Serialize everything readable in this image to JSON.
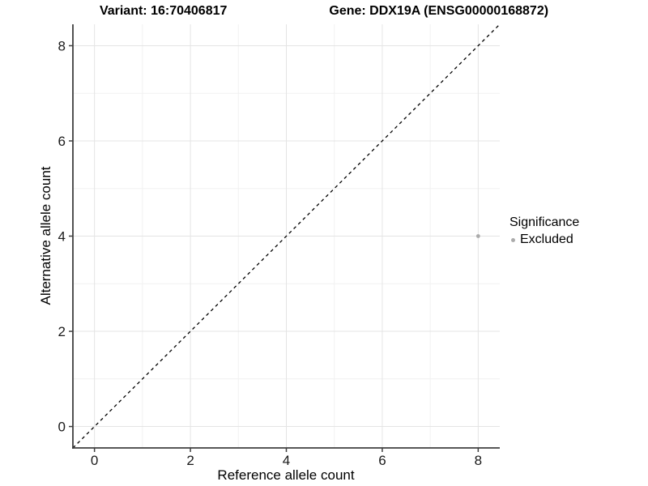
{
  "title": {
    "variant": "Variant: 16:70406817",
    "gene": "Gene: DDX19A (ENSG00000168872)"
  },
  "axes": {
    "x": {
      "label": "Reference allele count",
      "major_ticks": [
        0,
        2,
        4,
        6,
        8
      ],
      "minor_ticks": [
        1,
        3,
        5,
        7
      ],
      "range": [
        -0.45,
        8.45
      ]
    },
    "y": {
      "label": "Alternative allele count",
      "major_ticks": [
        0,
        2,
        4,
        6,
        8
      ],
      "minor_ticks": [
        1,
        3,
        5,
        7
      ],
      "range": [
        -0.45,
        8.45
      ]
    }
  },
  "legend": {
    "title": "Significance",
    "items": [
      {
        "label": "Excluded",
        "color": "#ababab"
      }
    ]
  },
  "chart_data": {
    "type": "scatter",
    "title": "Variant: 16:70406817   Gene: DDX19A (ENSG00000168872)",
    "xlabel": "Reference allele count",
    "ylabel": "Alternative allele count",
    "xlim": [
      -0.45,
      8.45
    ],
    "ylim": [
      -0.45,
      8.45
    ],
    "x_ticks": [
      0,
      2,
      4,
      6,
      8
    ],
    "y_ticks": [
      0,
      2,
      4,
      6,
      8
    ],
    "grid": "on",
    "legend_position": "right",
    "series": [
      {
        "name": "Excluded",
        "color": "#ababab",
        "points": [
          {
            "x": 8,
            "y": 4
          }
        ]
      }
    ],
    "reference_line": {
      "type": "identity",
      "slope": 1,
      "intercept": 0,
      "style": "dashed",
      "color": "#000000"
    }
  },
  "colors": {
    "background": "#ffffff",
    "grid_major": "#e4e4e4",
    "grid_minor": "#f1f1f1",
    "axis_line": "#3f3f3f",
    "tick_label": "#1a1a1a",
    "point": "#ababab",
    "dashed_line": "#000000"
  }
}
